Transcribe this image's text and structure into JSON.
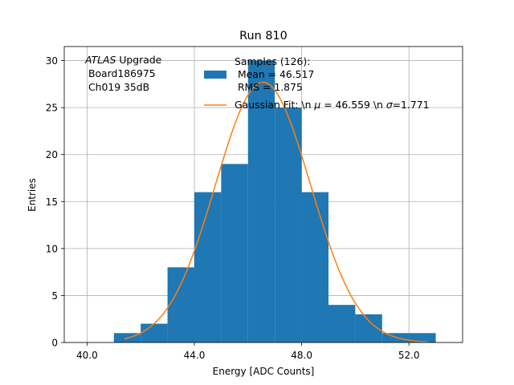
{
  "colors": {
    "background": "#ffffff",
    "bar": "#1f77b4",
    "fit": "#ff7f0e",
    "grid": "#b0b0b0",
    "axis": "#000000"
  },
  "chart_data": {
    "type": "bar",
    "title": "Run 810",
    "xlabel": "Energy [ADC Counts]",
    "ylabel": "Entries",
    "xlim": [
      39.15,
      54.0
    ],
    "ylim": [
      0,
      31.5
    ],
    "grid": true,
    "xticks": [
      40.0,
      44.0,
      48.0,
      52.0
    ],
    "xtick_labels": [
      "40.0",
      "44.0",
      "48.0",
      "52.0"
    ],
    "yticks": [
      0,
      5,
      10,
      15,
      20,
      25,
      30
    ],
    "ytick_labels": [
      "0",
      "5",
      "10",
      "15",
      "20",
      "25",
      "30"
    ],
    "histogram": {
      "name": "Samples (126):",
      "bin_edges": [
        41,
        42,
        43,
        44,
        45,
        46,
        47,
        48,
        49,
        50,
        51,
        52,
        53
      ],
      "counts": [
        1,
        2,
        8,
        16,
        19,
        30,
        25,
        16,
        4,
        3,
        1,
        1
      ]
    },
    "fit": {
      "name": "Gaussian Fit",
      "mu": 46.559,
      "sigma": 1.771,
      "amplitude": 27.7,
      "x_range": [
        41.4,
        52.7
      ]
    },
    "annotation": {
      "italic": "ATLAS",
      "suffix": " Upgrade",
      "line2": " Board186975",
      "line3": " Ch019 35dB"
    },
    "legend": {
      "location": "top-center",
      "hist_line1": "Samples (126):",
      "hist_line2": " Mean = 46.517",
      "hist_line3": " RMS = 1.875",
      "fit_prefix": "Gaussian Fit: \\n ",
      "fit_mu_symbol": "μ",
      "fit_mu_value": " = 46.559 \\n ",
      "fit_sigma_symbol": "σ",
      "fit_sigma_value": "=1.771"
    }
  }
}
